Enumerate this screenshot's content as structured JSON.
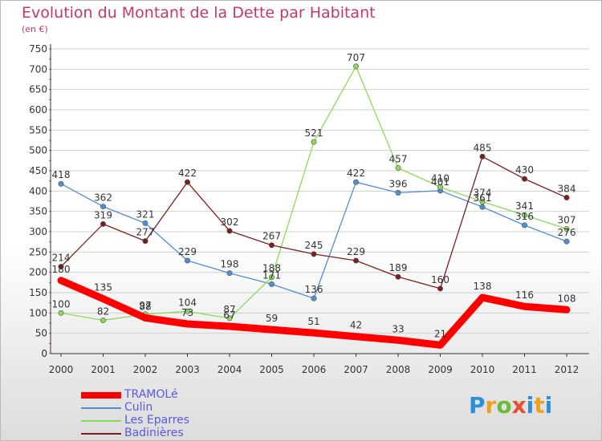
{
  "title": "Evolution du Montant de la Dette par Habitant",
  "subtitle": "(en €)",
  "logo": "Proxiti",
  "chart_data": {
    "type": "line",
    "title": "Evolution du Montant de la Dette par Habitant",
    "subtitle": "(en €)",
    "x": [
      "2000",
      "2001",
      "2002",
      "2003",
      "2004",
      "2005",
      "2006",
      "2007",
      "2008",
      "2009",
      "2010",
      "2011",
      "2012"
    ],
    "ylim": [
      0,
      750
    ],
    "yticks": [
      0,
      50,
      100,
      150,
      200,
      250,
      300,
      350,
      400,
      450,
      500,
      550,
      600,
      650,
      700,
      750
    ],
    "grid": "horizontal",
    "legend_position": "bottom-left",
    "series": [
      {
        "name": "TRAMOLé",
        "color": "#ff0000",
        "values": [
          180,
          135,
          88,
          73,
          67,
          59,
          51,
          42,
          33,
          21,
          138,
          116,
          108
        ]
      },
      {
        "name": "Culin",
        "color": "#4f8fd0",
        "values": [
          418,
          362,
          321,
          229,
          198,
          171,
          136,
          422,
          396,
          401,
          361,
          316,
          276
        ]
      },
      {
        "name": "Les Eparres",
        "color": "#8fd857",
        "values": [
          100,
          82,
          97,
          104,
          87,
          188,
          521,
          707,
          457,
          410,
          374,
          341,
          307
        ]
      },
      {
        "name": "Badinières",
        "color": "#7b1f1f",
        "values": [
          214,
          319,
          277,
          422,
          302,
          267,
          245,
          229,
          189,
          160,
          485,
          430,
          384
        ]
      }
    ]
  }
}
